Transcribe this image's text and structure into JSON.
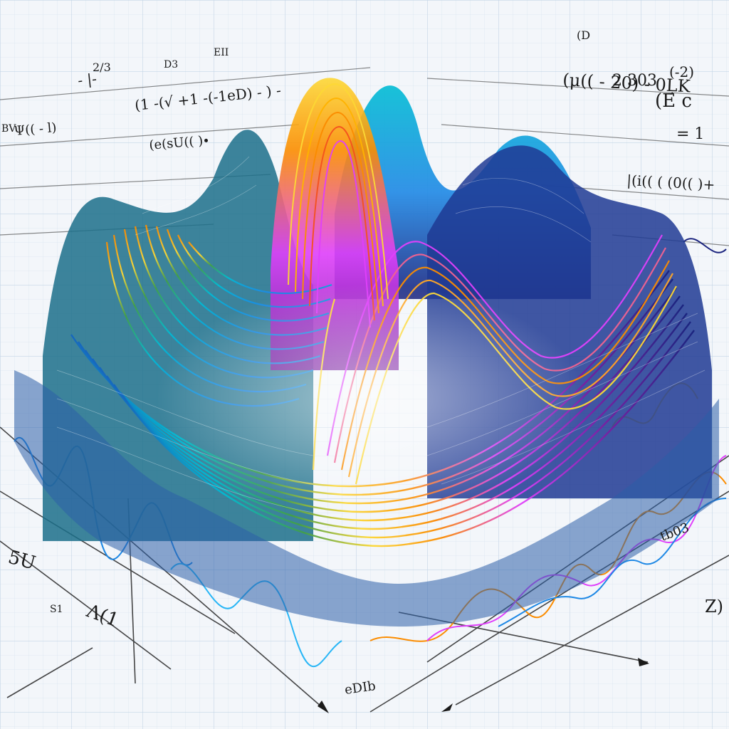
{
  "artwork": {
    "palette": {
      "paper": "#f3f6fa",
      "grid": "#c9d7e6",
      "ink": "#1a1a1a",
      "accent_blue": "#1e88e5",
      "accent_cyan": "#00bcd4",
      "accent_green": "#43a047",
      "accent_yellow": "#fdd835",
      "accent_orange": "#fb8c00",
      "accent_magenta": "#e040fb",
      "accent_purple": "#7b1fa2",
      "accent_navy": "#1a237e"
    },
    "formula_scribbles": [
      "(1 -(√ +1 -(-1eD) - ) -",
      "(μ(( - 20) - 0ĻK",
      "(e(sU(( )∙",
      "- |-",
      "(-2)",
      "Ψ(( - l)",
      "= 1",
      "|(i(( ( (0(( )+",
      "(E c",
      "2/3",
      "2 303",
      "eDIb",
      "D3",
      "EII",
      "Λ(1",
      "S1",
      "tb03",
      "Z)",
      "5U",
      "BV",
      "(D"
    ]
  }
}
